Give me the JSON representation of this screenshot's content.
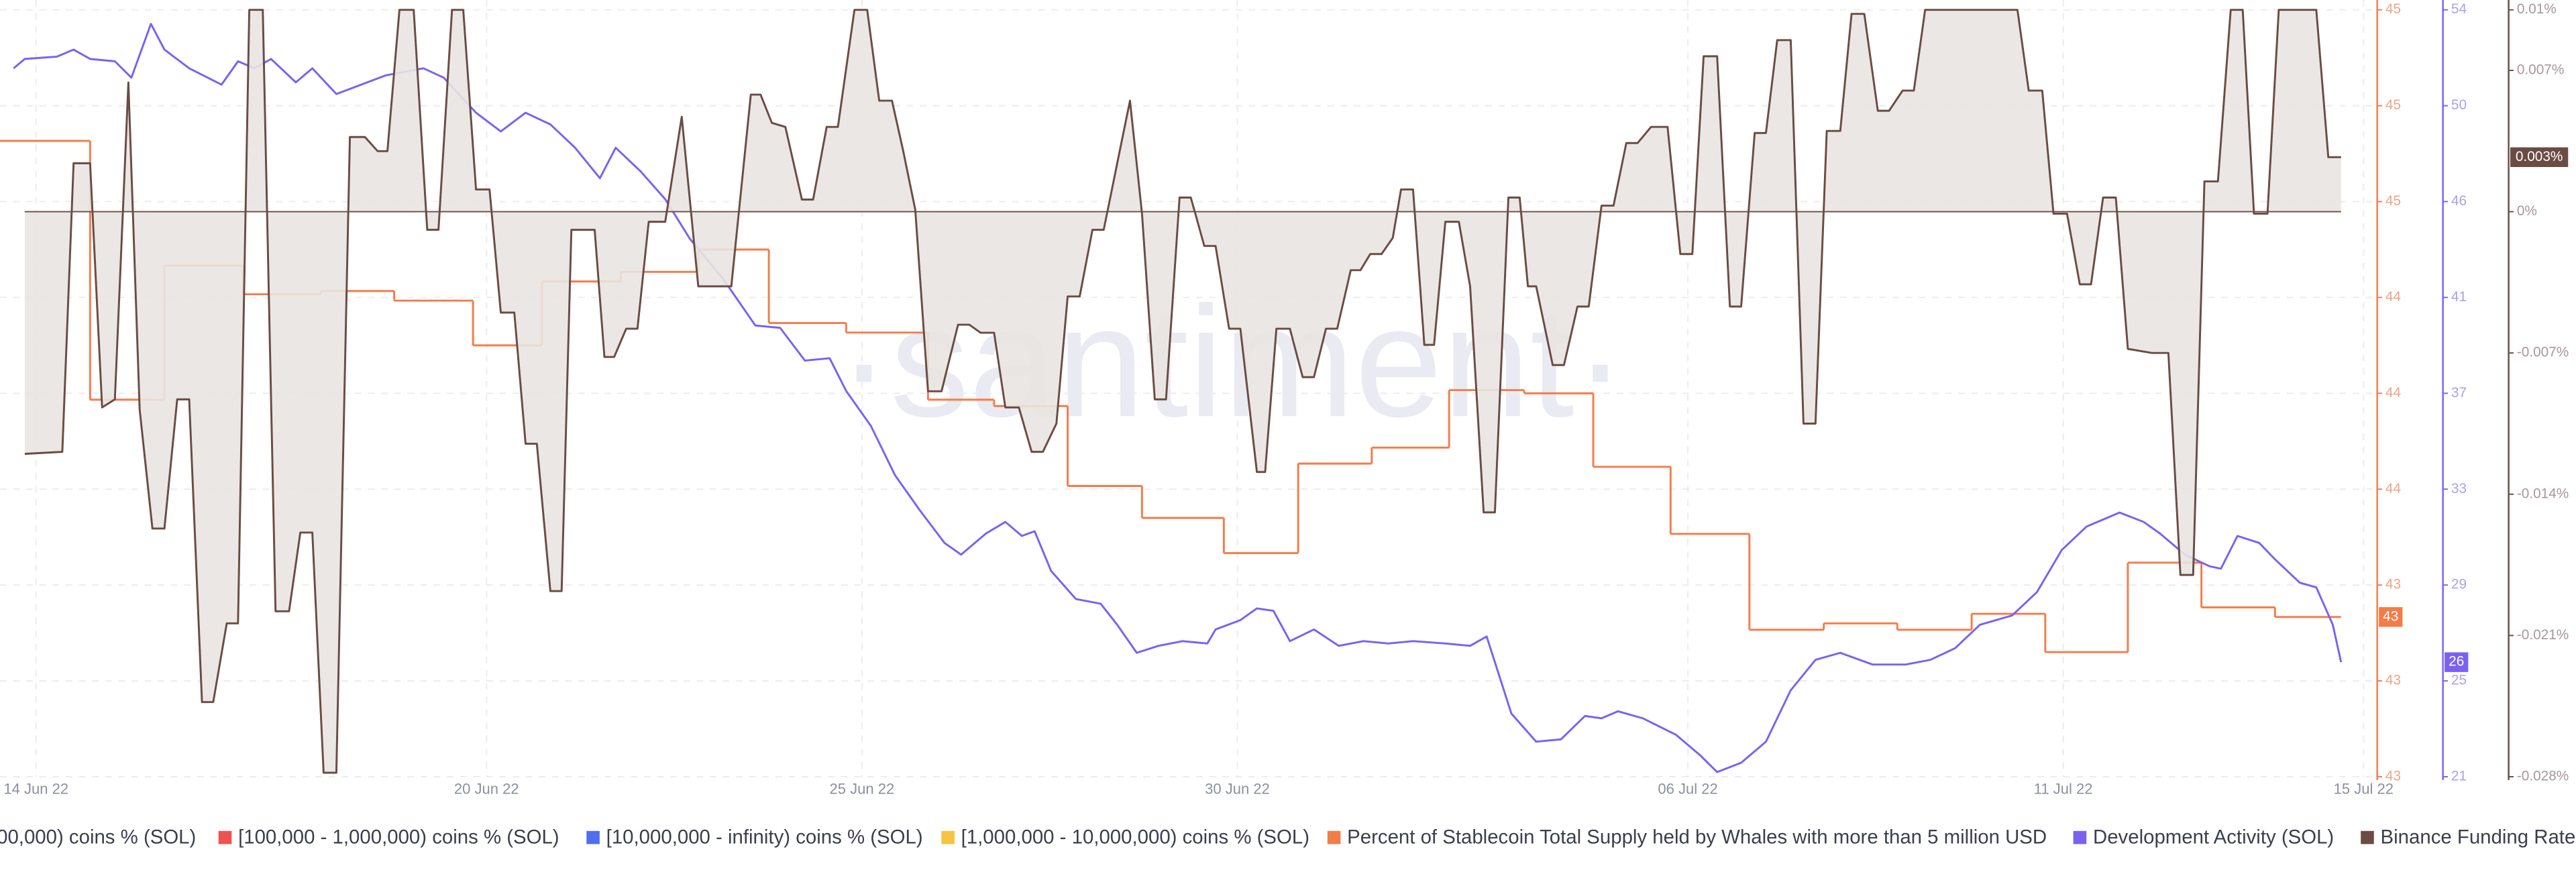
{
  "chart_data": {
    "type": "line",
    "watermark": "·santiment·",
    "grid": true,
    "xlim": [
      -0.48,
      30.7
    ],
    "xticks": [
      {
        "value": 0,
        "label": "14 Jun 22"
      },
      {
        "value": 6,
        "label": "20 Jun 22"
      },
      {
        "value": 11,
        "label": "25 Jun 22"
      },
      {
        "value": 16,
        "label": "30 Jun 22"
      },
      {
        "value": 22,
        "label": "06 Jul 22"
      },
      {
        "value": 27,
        "label": "11 Jul 22"
      },
      {
        "value": 31,
        "label": "15 Jul 22"
      }
    ],
    "ylim": [
      42.8,
      45.2
    ],
    "yticks": [
      {
        "value": 45.2,
        "label": "45"
      },
      {
        "value": 44.9,
        "label": "45"
      },
      {
        "value": 44.6,
        "label": "45"
      },
      {
        "value": 44.3,
        "label": "44"
      },
      44,
      {
        "value": 43.7,
        "label": "44"
      },
      {
        "value": 43.4,
        "label": "43"
      },
      {
        "value": 43.1,
        "label": "43"
      },
      {
        "value": 42.8,
        "label": "43"
      }
    ],
    "y2lim": [
      20.9,
      53.7
    ],
    "y2ticks": [
      {
        "value": 53.7,
        "label": "54"
      },
      {
        "value": 49.6,
        "label": "50"
      },
      {
        "value": 45.5,
        "label": "46"
      },
      {
        "value": 41.4,
        "label": "41"
      },
      {
        "value": 37.3,
        "label": "37"
      },
      {
        "value": 33.2,
        "label": "33"
      },
      {
        "value": 29.1,
        "label": "29"
      },
      25,
      {
        "value": 20.9,
        "label": "21"
      }
    ],
    "y3lim": [
      -0.028,
      0.01
    ],
    "y3ticks": [
      {
        "value": 0.01,
        "label": "0.01%"
      },
      {
        "value": 0.007,
        "label": "0.007%"
      },
      {
        "value": 0,
        "label": "0%"
      },
      {
        "value": -0.007,
        "label": "-0.007%"
      },
      {
        "value": -0.014,
        "label": "-0.014%"
      },
      {
        "value": -0.021,
        "label": "-0.021%"
      },
      {
        "value": -0.028,
        "label": "-0.028%"
      }
    ],
    "series": [
      {
        "name": "00,000) coins % (SOL)"
      },
      {
        "name": "[100,000  - 1,000,000) coins % (SOL)",
        "color": "#ef5350"
      },
      {
        "name": "[10,000,000 - infinity) coins % (SOL)",
        "color": "#4f6ff0"
      },
      {
        "name": "[1,000,000 - 10,000,000) coins % (SOL)",
        "color": "#f6c343"
      },
      {
        "name": "Percent of Stablecoin Total Supply held by Whales with more than 5 million USD",
        "color": "#f47c48",
        "axis": "y",
        "step": true,
        "last_label": "43",
        "x": [
          -0.48,
          0.72,
          1.71,
          2.76,
          3.79,
          4.77,
          5.82,
          6.74,
          7.79,
          8.82,
          9.76,
          10.79,
          11.88,
          12.76,
          13.74,
          14.73,
          15.82,
          16.81,
          17.79,
          18.82,
          19.82,
          20.74,
          21.77,
          22.82,
          23.81,
          24.79,
          25.78,
          26.76,
          27.86,
          28.84,
          29.82
        ],
        "values": [
          44.79,
          43.98,
          44.4,
          44.31,
          44.32,
          44.29,
          44.15,
          44.35,
          44.38,
          44.45,
          44.22,
          44.19,
          43.98,
          43.96,
          43.71,
          43.61,
          43.5,
          43.78,
          43.83,
          44.01,
          44,
          43.77,
          43.56,
          43.26,
          43.28,
          43.26,
          43.31,
          43.19,
          43.47,
          43.33,
          43.3
        ]
      },
      {
        "name": "Development Activity (SOL)",
        "color": "#7b61f2",
        "axis": "y2",
        "last_label": "26",
        "x": [
          -0.3,
          -0.15,
          0.28,
          0.5,
          0.72,
          1.05,
          1.27,
          1.53,
          1.71,
          2.04,
          2.47,
          2.69,
          2.91,
          3.13,
          3.46,
          3.68,
          4,
          4.33,
          4.66,
          5.16,
          5.43,
          5.86,
          6.19,
          6.52,
          6.85,
          7.18,
          7.51,
          7.72,
          8.05,
          8.38,
          8.71,
          9.15,
          9.58,
          9.91,
          10.24,
          10.57,
          10.79,
          11.12,
          11.44,
          11.77,
          12.1,
          12.32,
          12.65,
          12.91,
          13.13,
          13.3,
          13.52,
          13.85,
          14.18,
          14.4,
          14.66,
          14.95,
          15.27,
          15.6,
          15.71,
          16.04,
          16.26,
          16.48,
          16.7,
          17.02,
          17.35,
          17.68,
          18.01,
          18.34,
          18.77,
          19.1,
          19.32,
          19.65,
          19.98,
          20.31,
          20.63,
          20.85,
          21.07,
          21.4,
          21.84,
          22.17,
          22.39,
          22.71,
          23.04,
          23.37,
          23.7,
          24.03,
          24.46,
          24.9,
          25.23,
          25.56,
          25.89,
          26.32,
          26.65,
          26.98,
          27.31,
          27.75,
          28.07,
          28.29,
          28.62,
          28.95,
          29.1,
          29.32,
          29.61,
          29.82,
          30.15,
          30.37,
          30.59,
          30.7
        ],
        "values": [
          51.2,
          51.6,
          51.7,
          52,
          51.6,
          51.5,
          50.8,
          53.1,
          52,
          51.2,
          50.5,
          51.5,
          51.2,
          51.6,
          50.6,
          51.2,
          50.1,
          50.5,
          50.9,
          51.2,
          50.8,
          49.3,
          48.5,
          49.3,
          48.8,
          47.8,
          46.5,
          47.8,
          46.8,
          45.6,
          43.9,
          42.2,
          40.2,
          40.1,
          38.7,
          38.8,
          37.4,
          35.9,
          33.8,
          32.3,
          30.9,
          30.4,
          31.3,
          31.8,
          31.2,
          31.4,
          29.7,
          28.5,
          28.3,
          27.4,
          26.2,
          26.5,
          26.7,
          26.6,
          27.2,
          27.6,
          28.1,
          28,
          26.7,
          27.2,
          26.5,
          26.7,
          26.6,
          26.7,
          26.6,
          26.5,
          26.9,
          23.6,
          22.4,
          22.5,
          23.5,
          23.4,
          23.7,
          23.4,
          22.7,
          21.8,
          21.1,
          21.5,
          22.4,
          24.6,
          25.9,
          26.2,
          25.7,
          25.7,
          25.9,
          26.4,
          27.4,
          27.8,
          28.8,
          30.6,
          31.6,
          32.2,
          31.8,
          31.3,
          30.4,
          29.9,
          29.8,
          31.2,
          30.9,
          30.2,
          29.2,
          29,
          27.4,
          25.8
        ]
      },
      {
        "name": "Binance Funding Rate (",
        "color": "#6b4c43",
        "fill": "#e9e4e1",
        "axis": "y3",
        "area": true,
        "last_label": "0.003%",
        "x": [
          -0.15,
          0.35,
          0.5,
          0.72,
          0.88,
          1.05,
          1.23,
          1.38,
          1.55,
          1.71,
          1.88,
          2.04,
          2.21,
          2.36,
          2.54,
          2.69,
          2.84,
          3.02,
          3.19,
          3.37,
          3.52,
          3.68,
          3.83,
          4,
          4.18,
          4.38,
          4.55,
          4.68,
          4.84,
          5.03,
          5.21,
          5.36,
          5.54,
          5.69,
          5.86,
          6.04,
          6.19,
          6.37,
          6.52,
          6.67,
          6.85,
          7,
          7.13,
          7.44,
          7.57,
          7.7,
          7.86,
          8.01,
          8.16,
          8.38,
          8.6,
          8.82,
          9.26,
          9.52,
          9.65,
          9.8,
          9.98,
          10.2,
          10.35,
          10.53,
          10.68,
          10.9,
          11.07,
          11.23,
          11.4,
          11.55,
          11.71,
          11.88,
          12.06,
          12.28,
          12.43,
          12.58,
          12.76,
          12.91,
          13.09,
          13.26,
          13.41,
          13.59,
          13.74,
          13.9,
          14.07,
          14.22,
          14.4,
          14.57,
          14.73,
          14.9,
          15.05,
          15.23,
          15.38,
          15.56,
          15.71,
          15.89,
          16.04,
          16.26,
          16.37,
          16.52,
          16.7,
          16.87,
          17.02,
          17.18,
          17.33,
          17.51,
          17.64,
          17.77,
          17.92,
          18.07,
          18.18,
          18.34,
          18.49,
          18.62,
          18.77,
          18.95,
          19.1,
          19.28,
          19.43,
          19.61,
          19.76,
          19.87,
          19.98,
          20.2,
          20.35,
          20.53,
          20.68,
          20.85,
          21.01,
          21.18,
          21.33,
          21.51,
          21.73,
          21.9,
          22.06,
          22.21,
          22.39,
          22.56,
          22.71,
          22.89,
          23.04,
          23.19,
          23.37,
          23.54,
          23.7,
          23.85,
          24.03,
          24.18,
          24.35,
          24.53,
          24.68,
          24.86,
          25.01,
          25.16,
          26.39,
          26.54,
          26.72,
          26.87,
          27.05,
          27.22,
          27.37,
          27.53,
          27.7,
          27.86,
          28.18,
          28.4,
          28.56,
          28.73,
          28.88,
          29.06,
          29.23,
          29.39,
          29.54,
          29.72,
          29.87,
          30.37,
          30.53,
          30.7
        ],
        "values": [
          -0.012,
          -0.0119,
          0.0024,
          0.0024,
          -0.0097,
          -0.0093,
          0.0064,
          -0.0098,
          -0.0157,
          -0.0157,
          -0.0093,
          -0.0093,
          -0.0243,
          -0.0243,
          -0.0204,
          -0.0204,
          0.01,
          0.01,
          -0.0198,
          -0.0198,
          -0.0159,
          -0.0159,
          -0.0278,
          -0.0278,
          0.0037,
          0.0037,
          0.003,
          0.003,
          0.01,
          0.01,
          -0.0009,
          -0.0009,
          0.01,
          0.01,
          0.0011,
          0.0011,
          -0.005,
          -0.005,
          -0.0115,
          -0.0115,
          -0.0188,
          -0.0188,
          -0.0009,
          -0.0009,
          -0.0072,
          -0.0072,
          -0.0058,
          -0.0058,
          -0.0005,
          -0.0005,
          0.0047,
          -0.0037,
          -0.0037,
          0.0058,
          0.0058,
          0.0044,
          0.0042,
          0.0006,
          0.0006,
          0.0042,
          0.0042,
          0.01,
          0.01,
          0.0055,
          0.0055,
          0.003,
          0.0001,
          -0.0089,
          -0.0089,
          -0.0056,
          -0.0056,
          -0.006,
          -0.006,
          -0.0097,
          -0.0097,
          -0.0119,
          -0.0119,
          -0.0105,
          -0.0042,
          -0.0042,
          -0.0009,
          -0.0009,
          0.0024,
          0.0055,
          -0.0001,
          -0.0093,
          -0.0093,
          0.0007,
          0.0007,
          -0.0017,
          -0.0017,
          -0.0058,
          -0.0058,
          -0.0129,
          -0.0129,
          -0.0058,
          -0.0058,
          -0.0082,
          -0.0082,
          -0.0058,
          -0.0058,
          -0.0029,
          -0.0029,
          -0.0021,
          -0.0021,
          -0.0013,
          0.0011,
          0.0011,
          -0.0066,
          -0.0066,
          -0.0005,
          -0.0005,
          -0.0037,
          -0.0149,
          -0.0149,
          0.0007,
          0.0007,
          -0.0037,
          -0.0037,
          -0.0076,
          -0.0076,
          -0.0047,
          -0.0047,
          0.0003,
          0.0003,
          0.0034,
          0.0034,
          0.0042,
          0.0042,
          -0.0021,
          -0.0021,
          0.0077,
          0.0077,
          -0.0047,
          -0.0047,
          0.0039,
          0.0039,
          0.0085,
          0.0085,
          -0.0105,
          -0.0105,
          0.004,
          0.004,
          0.0098,
          0.0098,
          0.005,
          0.005,
          0.006,
          0.006,
          0.01,
          0.01,
          0.006,
          0.006,
          -0.0001,
          -0.0001,
          -0.0036,
          -0.0036,
          0.0007,
          0.0007,
          -0.0068,
          -0.007,
          -0.007,
          -0.018,
          -0.018,
          0.0015,
          0.0015,
          0.01,
          0.01,
          -0.0001,
          -0.0001,
          0.01,
          0.01,
          0.0027,
          0.0027
        ]
      }
    ]
  }
}
